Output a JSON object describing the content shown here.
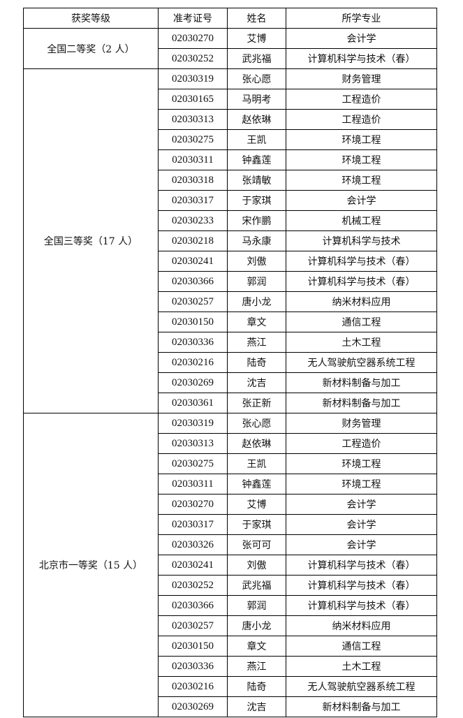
{
  "headers": [
    "获奖等级",
    "准考证号",
    "姓名",
    "所学专业"
  ],
  "groups": [
    {
      "level": "全国二等奖（2 人）",
      "rows": [
        [
          "02030270",
          "艾博",
          "会计学"
        ],
        [
          "02030252",
          "武兆福",
          "计算机科学与技术（春）"
        ]
      ]
    },
    {
      "level": "全国三等奖（17 人）",
      "rows": [
        [
          "02030319",
          "张心愿",
          "财务管理"
        ],
        [
          "02030165",
          "马明考",
          "工程造价"
        ],
        [
          "02030313",
          "赵依琳",
          "工程造价"
        ],
        [
          "02030275",
          "王凯",
          "环境工程"
        ],
        [
          "02030311",
          "钟鑫莲",
          "环境工程"
        ],
        [
          "02030318",
          "张靖敏",
          "环境工程"
        ],
        [
          "02030317",
          "于家琪",
          "会计学"
        ],
        [
          "02030233",
          "宋作鹏",
          "机械工程"
        ],
        [
          "02030218",
          "马永康",
          "计算机科学与技术"
        ],
        [
          "02030241",
          "刘傲",
          "计算机科学与技术（春）"
        ],
        [
          "02030366",
          "郭润",
          "计算机科学与技术（春）"
        ],
        [
          "02030257",
          "唐小龙",
          "纳米材料应用"
        ],
        [
          "02030150",
          "章文",
          "通信工程"
        ],
        [
          "02030336",
          "燕江",
          "土木工程"
        ],
        [
          "02030216",
          "陆奇",
          "无人驾驶航空器系统工程"
        ],
        [
          "02030269",
          "沈吉",
          "新材料制备与加工"
        ],
        [
          "02030361",
          "张正新",
          "新材料制备与加工"
        ]
      ]
    },
    {
      "level": "北京市一等奖（15 人）",
      "rows": [
        [
          "02030319",
          "张心愿",
          "财务管理"
        ],
        [
          "02030313",
          "赵依琳",
          "工程造价"
        ],
        [
          "02030275",
          "王凯",
          "环境工程"
        ],
        [
          "02030311",
          "钟鑫莲",
          "环境工程"
        ],
        [
          "02030270",
          "艾博",
          "会计学"
        ],
        [
          "02030317",
          "于家琪",
          "会计学"
        ],
        [
          "02030326",
          "张可可",
          "会计学"
        ],
        [
          "02030241",
          "刘傲",
          "计算机科学与技术（春）"
        ],
        [
          "02030252",
          "武兆福",
          "计算机科学与技术（春）"
        ],
        [
          "02030366",
          "郭润",
          "计算机科学与技术（春）"
        ],
        [
          "02030257",
          "唐小龙",
          "纳米材料应用"
        ],
        [
          "02030150",
          "章文",
          "通信工程"
        ],
        [
          "02030336",
          "燕江",
          "土木工程"
        ],
        [
          "02030216",
          "陆奇",
          "无人驾驶航空器系统工程"
        ],
        [
          "02030269",
          "沈吉",
          "新材料制备与加工"
        ]
      ]
    }
  ]
}
